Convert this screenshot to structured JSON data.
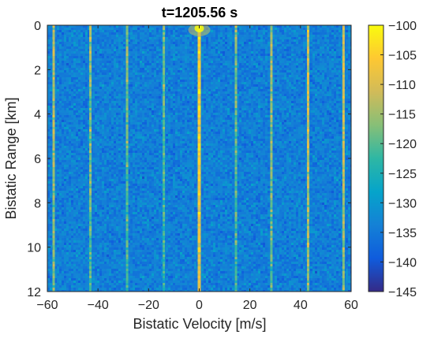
{
  "chart_data": {
    "type": "heatmap",
    "title": "t=1205.56 s",
    "xlabel": "Bistatic Velocity [m/s]",
    "ylabel": "Bistatic Range [km]",
    "xlim": [
      -60,
      60
    ],
    "ylim": [
      12,
      0
    ],
    "x_ticks": [
      -60,
      -40,
      -20,
      0,
      20,
      40,
      60
    ],
    "x_tick_labels": [
      "−60",
      "−40",
      "−20",
      "0",
      "20",
      "40",
      "60"
    ],
    "y_ticks": [
      0,
      2,
      4,
      6,
      8,
      10,
      12
    ],
    "y_tick_labels": [
      "0",
      "2",
      "4",
      "6",
      "8",
      "10",
      "12"
    ],
    "colorbar": {
      "clim": [
        -145,
        -100
      ],
      "ticks": [
        -100,
        -105,
        -110,
        -115,
        -120,
        -125,
        -130,
        -135,
        -140,
        -145
      ],
      "tick_labels": [
        "−100",
        "−105",
        "−110",
        "−115",
        "−120",
        "−125",
        "−130",
        "−135",
        "−140",
        "−145"
      ],
      "colormap": "parula"
    },
    "background_level": -134,
    "vertical_lines": [
      {
        "velocity": -57.5,
        "level": -112,
        "extent_km": [
          0,
          12
        ]
      },
      {
        "velocity": -43,
        "level": -114,
        "extent_km": [
          0,
          12
        ]
      },
      {
        "velocity": -28.5,
        "level": -116,
        "extent_km": [
          0,
          12
        ]
      },
      {
        "velocity": -14,
        "level": -118,
        "extent_km": [
          0,
          12
        ]
      },
      {
        "velocity": 0,
        "level": -104,
        "extent_km": [
          0,
          12
        ]
      },
      {
        "velocity": 14.5,
        "level": -116,
        "extent_km": [
          0,
          12
        ]
      },
      {
        "velocity": 28.5,
        "level": -114,
        "extent_km": [
          0,
          12
        ]
      },
      {
        "velocity": 43,
        "level": -110,
        "extent_km": [
          0,
          12
        ]
      },
      {
        "velocity": 57,
        "level": -110,
        "extent_km": [
          0,
          12
        ]
      }
    ],
    "hotspot": {
      "velocity": 0,
      "range_km": 0,
      "level": -100
    },
    "grid": false
  }
}
